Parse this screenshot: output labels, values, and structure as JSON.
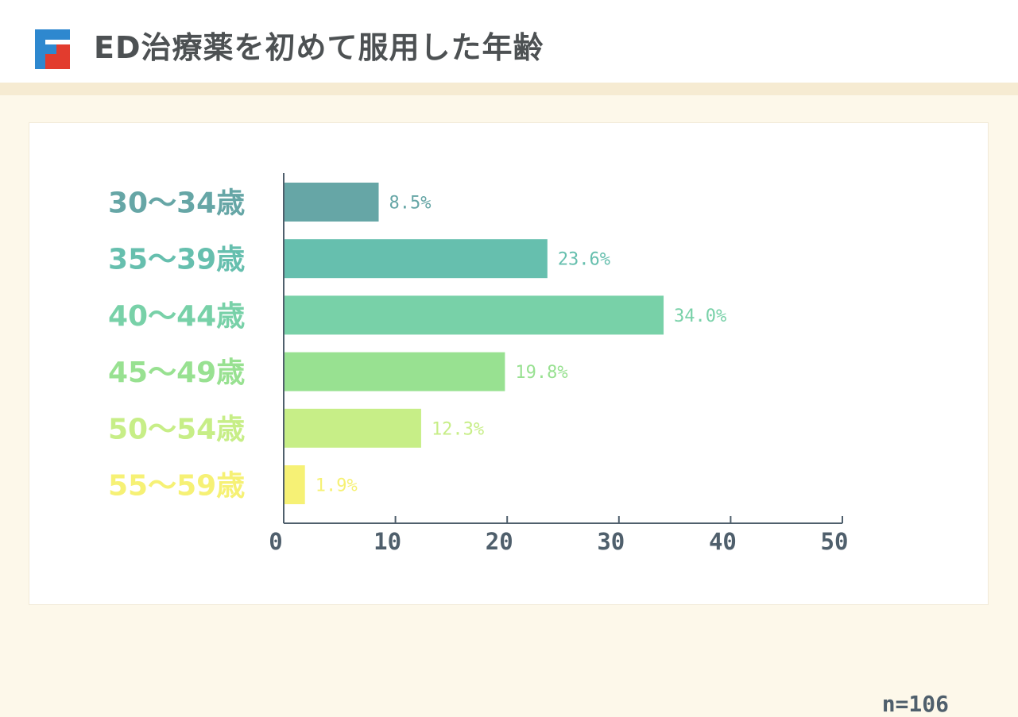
{
  "header": {
    "title": "ED治療薬を初めて服用した年齢",
    "logo_colors": {
      "blue": "#2e88cf",
      "red": "#e23c2e"
    }
  },
  "chart_data": {
    "type": "bar",
    "orientation": "horizontal",
    "title": "ED治療薬を初めて服用した年齢",
    "categories": [
      "30〜34歳",
      "35〜39歳",
      "40〜44歳",
      "45〜49歳",
      "50〜54歳",
      "55〜59歳"
    ],
    "values": [
      8.5,
      23.6,
      34.0,
      19.8,
      12.3,
      1.9
    ],
    "value_labels": [
      "8.5%",
      "23.6%",
      "34.0%",
      "19.8%",
      "12.3%",
      "1.9%"
    ],
    "colors": [
      "#66a6a6",
      "#66bfae",
      "#78d1a8",
      "#98e191",
      "#c7ee87",
      "#f6f175"
    ],
    "xlim": [
      0,
      50
    ],
    "xticks": [
      "0",
      "10",
      "20",
      "30",
      "40",
      "50"
    ],
    "grid": false,
    "note": "n=106"
  }
}
